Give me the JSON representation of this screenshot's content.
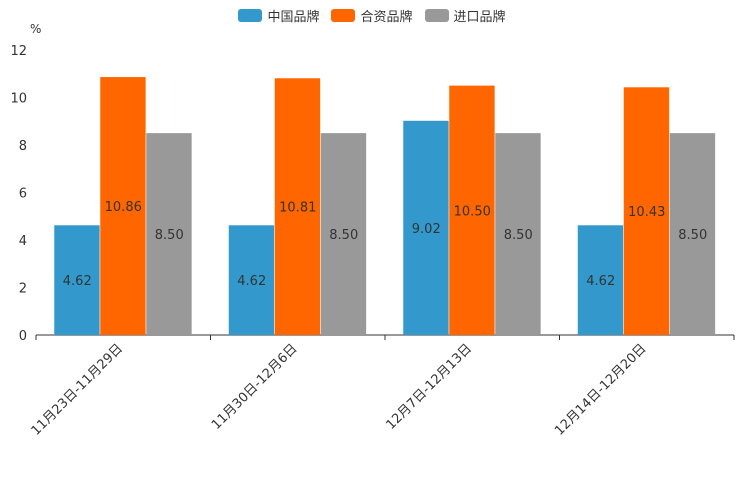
{
  "chart_data": {
    "type": "bar",
    "title": "",
    "unit_label": "%",
    "xlabel": "",
    "ylabel": "%",
    "ylim": [
      0,
      12
    ],
    "yticks": [
      0,
      2,
      4,
      6,
      8,
      10,
      12
    ],
    "legend_position": "top-center",
    "categories": [
      "11月23日-11月29日",
      "11月30日-12月6日",
      "12月7日-12月13日",
      "12月14日-12月20日"
    ],
    "series": [
      {
        "name": "中国品牌",
        "color": "#3399cc",
        "values": [
          4.62,
          4.62,
          9.02,
          4.62
        ],
        "labels": [
          "4.62",
          "4.62",
          "9.02",
          "4.62"
        ]
      },
      {
        "name": "合资品牌",
        "color": "#ff6600",
        "values": [
          10.86,
          10.81,
          10.5,
          10.43
        ],
        "labels": [
          "10.86",
          "10.81",
          "10.50",
          "10.43"
        ]
      },
      {
        "name": "进口品牌",
        "color": "#999999",
        "values": [
          8.5,
          8.5,
          8.5,
          8.5
        ],
        "labels": [
          "8.50",
          "8.50",
          "8.50",
          "8.50"
        ]
      }
    ]
  }
}
